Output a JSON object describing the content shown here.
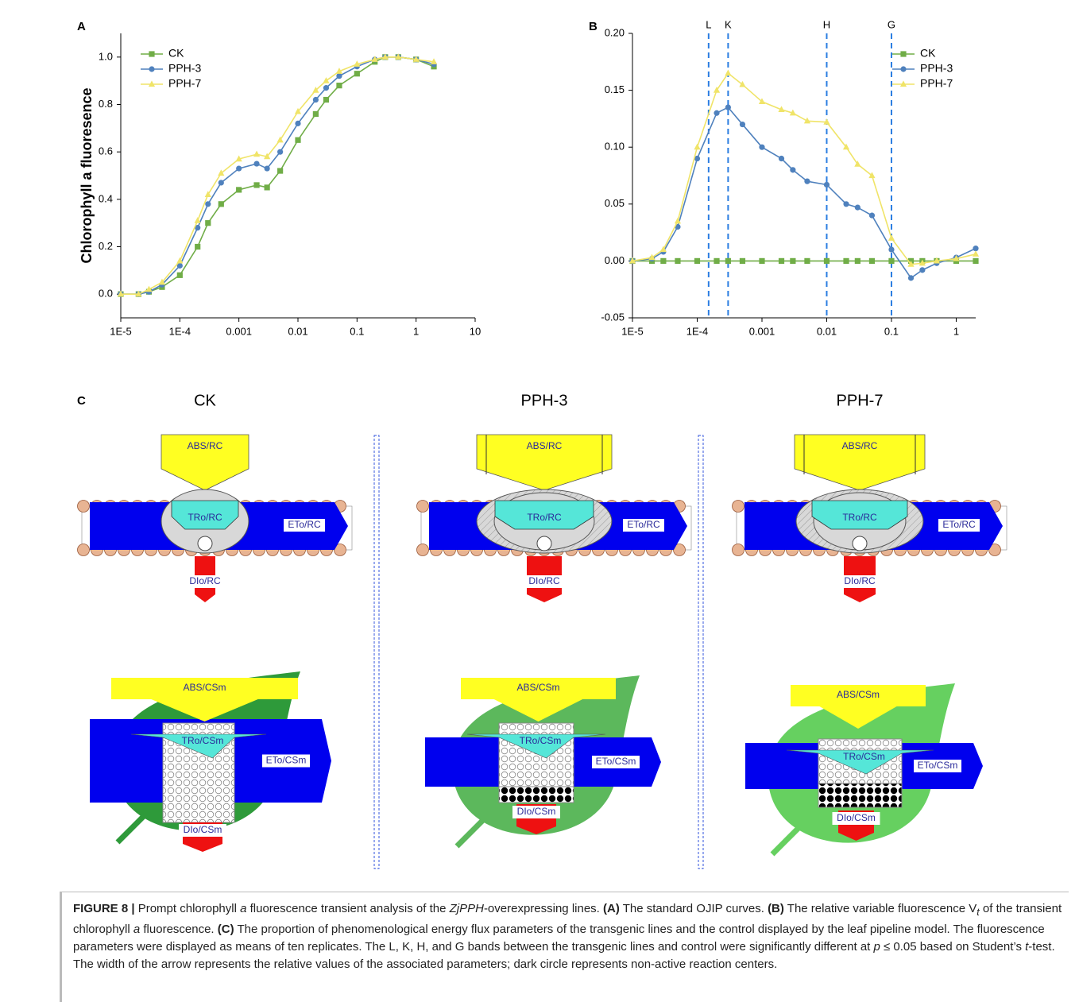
{
  "chart_data": [
    {
      "type": "line",
      "panel_label": "A",
      "y_label": "Chlorophyll a fluoresence",
      "xlog": true,
      "legend": "upper left",
      "xlim": [
        1e-05,
        10
      ],
      "xticks": [
        {
          "value": 1e-05,
          "label": "1E-5"
        },
        {
          "value": 0.0001,
          "label": "1E-4"
        },
        0.001,
        0.01,
        0.1,
        1,
        10
      ],
      "ylim": [
        -0.1,
        1.1
      ],
      "yticks": [
        {
          "value": 0,
          "label": "0.0"
        },
        0.2,
        0.4,
        0.6,
        0.8,
        {
          "value": 1,
          "label": "1.0"
        }
      ],
      "x": [
        1e-05,
        2e-05,
        3e-05,
        5e-05,
        0.0001,
        0.0002,
        0.0003,
        0.0005,
        0.001,
        0.002,
        0.003,
        0.005,
        0.01,
        0.02,
        0.03,
        0.05,
        0.1,
        0.2,
        0.3,
        0.5,
        1,
        2
      ],
      "series": [
        {
          "name": "CK",
          "color": "#70ad47",
          "marker": "square",
          "values": [
            0,
            0,
            0.01,
            0.03,
            0.08,
            0.2,
            0.3,
            0.38,
            0.44,
            0.46,
            0.45,
            0.52,
            0.65,
            0.76,
            0.82,
            0.88,
            0.93,
            0.98,
            1.0,
            1.0,
            0.99,
            0.96
          ]
        },
        {
          "name": "PPH-3",
          "color": "#4f81bd",
          "marker": "circle",
          "values": [
            0,
            0,
            0.01,
            0.04,
            0.12,
            0.28,
            0.38,
            0.47,
            0.53,
            0.55,
            0.53,
            0.6,
            0.72,
            0.82,
            0.87,
            0.92,
            0.96,
            0.99,
            1.0,
            1.0,
            0.99,
            0.97
          ]
        },
        {
          "name": "PPH-7",
          "color": "#f0e468",
          "marker": "triangle",
          "values": [
            0,
            0,
            0.02,
            0.05,
            0.14,
            0.31,
            0.42,
            0.51,
            0.57,
            0.59,
            0.58,
            0.65,
            0.77,
            0.86,
            0.9,
            0.94,
            0.97,
            0.99,
            1.0,
            1.0,
            0.99,
            0.98
          ]
        }
      ]
    },
    {
      "type": "line",
      "panel_label": "B",
      "xlog": true,
      "legend": "upper right",
      "xlim": [
        1e-05,
        2
      ],
      "xticks": [
        {
          "value": 1e-05,
          "label": "1E-5"
        },
        {
          "value": 0.0001,
          "label": "1E-4"
        },
        0.001,
        0.01,
        0.1,
        1
      ],
      "ylim": [
        -0.05,
        0.2
      ],
      "yticks": [
        -0.05,
        {
          "value": 0,
          "label": "0.00"
        },
        0.05,
        {
          "value": 0.1,
          "label": "0.10"
        },
        0.15,
        {
          "value": 0.2,
          "label": "0.20"
        }
      ],
      "bands": [
        {
          "label": "L",
          "x": 0.00015
        },
        {
          "label": "K",
          "x": 0.0003
        },
        {
          "label": "H",
          "x": 0.01
        },
        {
          "label": "G",
          "x": 0.1
        }
      ],
      "x": [
        1e-05,
        2e-05,
        3e-05,
        5e-05,
        0.0001,
        0.0002,
        0.0003,
        0.0005,
        0.001,
        0.002,
        0.003,
        0.005,
        0.01,
        0.02,
        0.03,
        0.05,
        0.1,
        0.2,
        0.3,
        0.5,
        1,
        2
      ],
      "series": [
        {
          "name": "CK",
          "color": "#70ad47",
          "marker": "square",
          "values": [
            0,
            0,
            0,
            0,
            0,
            0,
            0,
            0,
            0,
            0,
            0,
            0,
            0,
            0,
            0,
            0,
            0,
            0,
            0,
            0,
            0,
            0
          ]
        },
        {
          "name": "PPH-3",
          "color": "#4f81bd",
          "marker": "circle",
          "values": [
            0,
            0.002,
            0.008,
            0.03,
            0.09,
            0.13,
            0.135,
            0.12,
            0.1,
            0.09,
            0.08,
            0.07,
            0.067,
            0.05,
            0.047,
            0.04,
            0.01,
            -0.015,
            -0.008,
            -0.002,
            0.003,
            0.011
          ]
        },
        {
          "name": "PPH-7",
          "color": "#f0e468",
          "marker": "triangle",
          "values": [
            0,
            0.003,
            0.01,
            0.035,
            0.1,
            0.15,
            0.165,
            0.155,
            0.14,
            0.133,
            0.13,
            0.123,
            0.122,
            0.1,
            0.085,
            0.075,
            0.02,
            -0.003,
            -0.002,
            0,
            0.002,
            0.006
          ]
        }
      ]
    }
  ],
  "panel_c": {
    "label": "C",
    "columns": [
      {
        "title": "CK",
        "rc": [
          "ABS/RC",
          "TRo/RC",
          "ETo/RC",
          "DIo/RC"
        ],
        "csm": [
          "ABS/CSm",
          "TRo/CSm",
          "ETo/CSm",
          "DIo/CSm"
        ]
      },
      {
        "title": "PPH-3",
        "rc": [
          "ABS/RC",
          "TRo/RC",
          "ETo/RC",
          "DIo/RC"
        ],
        "csm": [
          "ABS/CSm",
          "TRo/CSm",
          "ETo/CSm",
          "DIo/CSm"
        ]
      },
      {
        "title": "PPH-7",
        "rc": [
          "ABS/RC",
          "TRo/RC",
          "ETo/RC",
          "DIo/RC"
        ],
        "csm": [
          "ABS/CSm",
          "TRo/CSm",
          "ETo/CSm",
          "DIo/CSm"
        ]
      }
    ]
  },
  "caption": {
    "runs": [
      "FIGURE 8 |",
      " Prompt chlorophyll ",
      "a",
      " fluorescence transient analysis of the ",
      "ZjPPH",
      "-overexpressing lines. ",
      "(A)",
      " The standard OJIP curves. ",
      "(B)",
      " The relative variable fluorescence V",
      "t",
      " of the transient chlorophyll ",
      "a",
      " fluorescence. ",
      "(C)",
      " The proportion of phenomenological energy flux parameters of the transgenic lines and the control displayed by the leaf pipeline model. The fluorescence parameters were displayed as means of ten replicates. The L, K, H, and G bands between the transgenic lines and control were significantly different at ",
      "p",
      " ≤ 0.05 based on Student’s ",
      "t",
      "-test. The width of the arrow represents the relative values of the associated parameters; dark circle represents non-active reaction centers."
    ]
  }
}
